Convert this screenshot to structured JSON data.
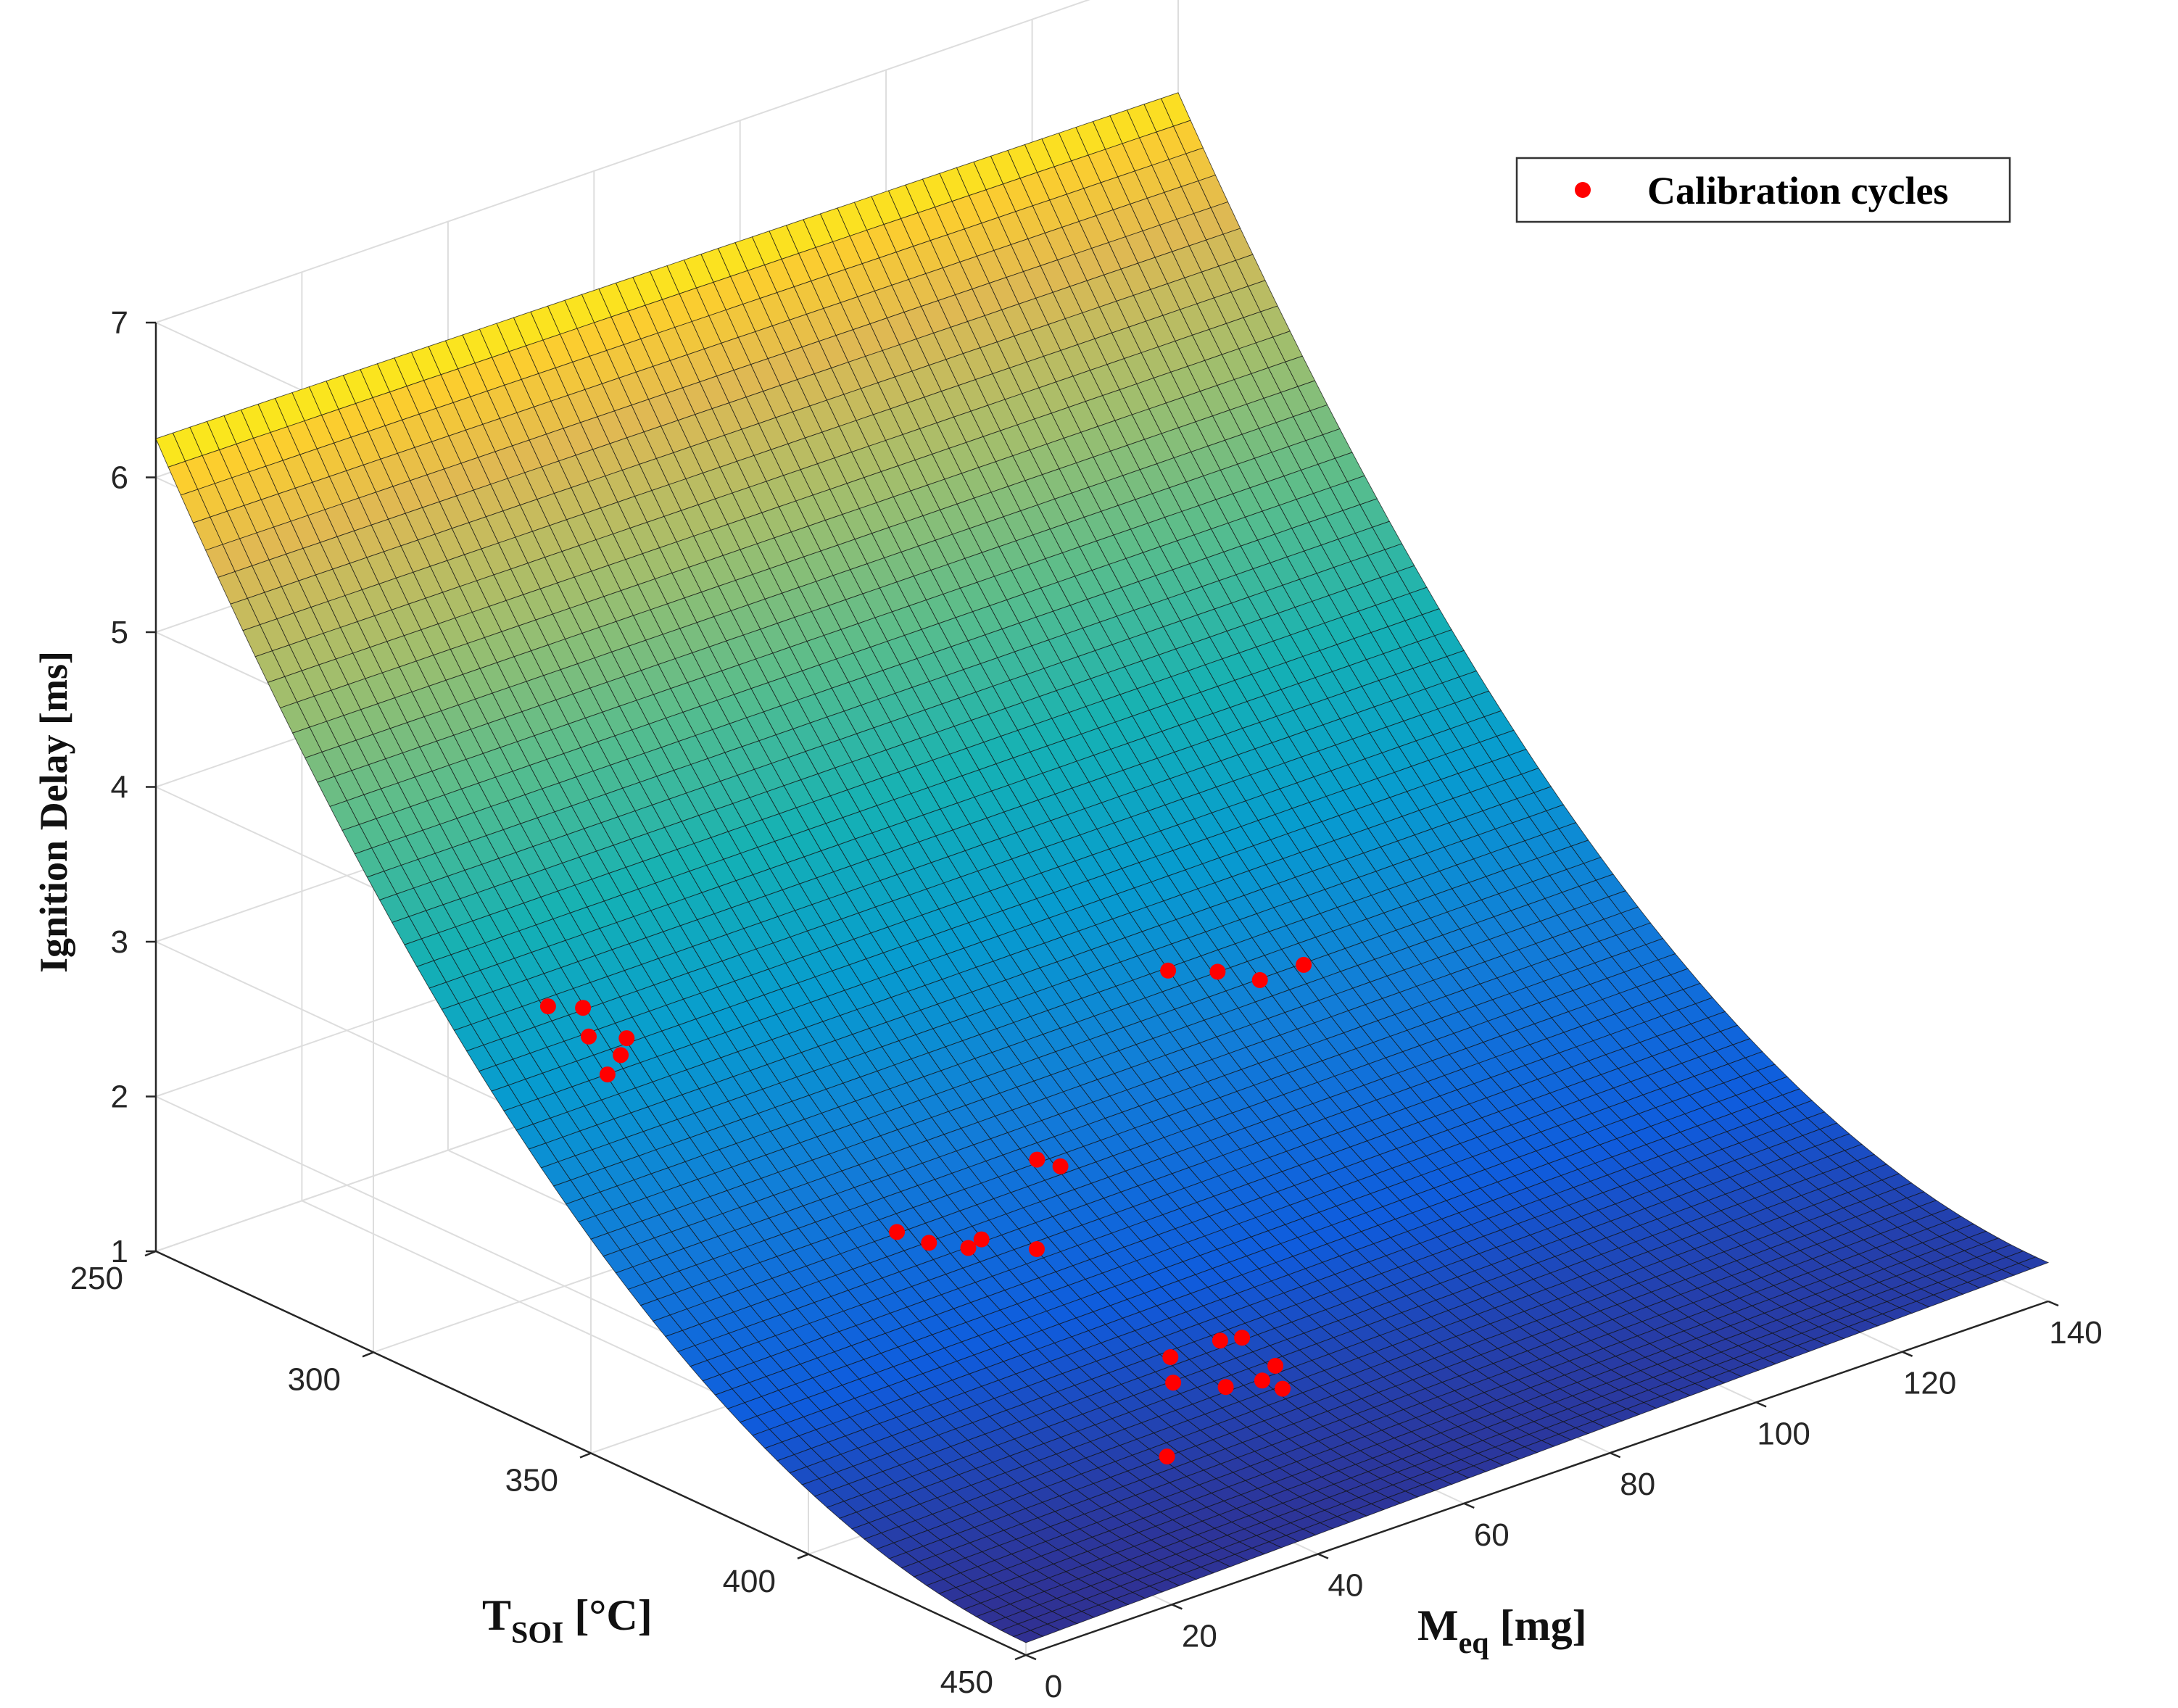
{
  "chart_data": {
    "type": "surface3d",
    "title": "",
    "x_axis": {
      "label_main": "M",
      "label_sub": "eq",
      "label_unit": " [mg]",
      "range": [
        0,
        140
      ],
      "ticks": [
        0,
        20,
        40,
        60,
        80,
        100,
        120,
        140
      ]
    },
    "y_axis": {
      "label_main": "T",
      "label_sub": "SOI",
      "label_unit": " [°C]",
      "range": [
        250,
        450
      ],
      "ticks": [
        250,
        300,
        350,
        400,
        450
      ]
    },
    "z_axis": {
      "label": "Ignition Delay [ms]",
      "range": [
        1,
        7
      ],
      "ticks": [
        1,
        2,
        3,
        4,
        5,
        6,
        7
      ]
    },
    "grid": true,
    "colormap": "parula",
    "surface": {
      "description_of_model": "ignition delay vs equivalent mass and start-of-injection temperature",
      "corner_values": {
        "M0_T250": 6.25,
        "M140_T250": 6.2,
        "M0_T450": 1.08,
        "M140_T450": 1.25
      },
      "min_value": 1.0
    },
    "legend": {
      "location": "top-right",
      "entries": [
        {
          "label": "Calibration cycles",
          "marker": "circle",
          "color": "#ff0000"
        }
      ]
    },
    "series": [
      {
        "name": "Calibration cycles",
        "points": [
          {
            "m": 12,
            "t": 320,
            "z": 3.3
          },
          {
            "m": 15,
            "t": 323,
            "z": 3.28
          },
          {
            "m": 14,
            "t": 326,
            "z": 3.15
          },
          {
            "m": 16,
            "t": 330,
            "z": 3.05
          },
          {
            "m": 18,
            "t": 328,
            "z": 3.1
          },
          {
            "m": 13,
            "t": 332,
            "z": 3.0
          },
          {
            "m": 30,
            "t": 370,
            "z": 2.2
          },
          {
            "m": 32,
            "t": 374,
            "z": 2.15
          },
          {
            "m": 35,
            "t": 378,
            "z": 2.12
          },
          {
            "m": 38,
            "t": 376,
            "z": 2.1
          },
          {
            "m": 42,
            "t": 382,
            "z": 2.05
          },
          {
            "m": 48,
            "t": 372,
            "z": 2.4
          },
          {
            "m": 50,
            "t": 374,
            "z": 2.35
          },
          {
            "m": 44,
            "t": 410,
            "z": 1.52
          },
          {
            "m": 46,
            "t": 406,
            "z": 1.6
          },
          {
            "m": 50,
            "t": 412,
            "z": 1.42
          },
          {
            "m": 54,
            "t": 404,
            "z": 1.55
          },
          {
            "m": 57,
            "t": 404,
            "z": 1.52
          },
          {
            "m": 55,
            "t": 412,
            "z": 1.38
          },
          {
            "m": 58,
            "t": 410,
            "z": 1.4
          },
          {
            "m": 56,
            "t": 415,
            "z": 1.35
          },
          {
            "m": 36,
            "t": 422,
            "z": 1.33
          },
          {
            "m": 85,
            "t": 340,
            "z": 2.6
          },
          {
            "m": 90,
            "t": 343,
            "z": 2.55
          },
          {
            "m": 94,
            "t": 346,
            "z": 2.47
          },
          {
            "m": 100,
            "t": 346,
            "z": 2.47
          }
        ]
      }
    ]
  },
  "colors": {
    "marker": "#ff0000",
    "grid": "#dddddd",
    "axis": "#262626",
    "background": "#ffffff"
  }
}
